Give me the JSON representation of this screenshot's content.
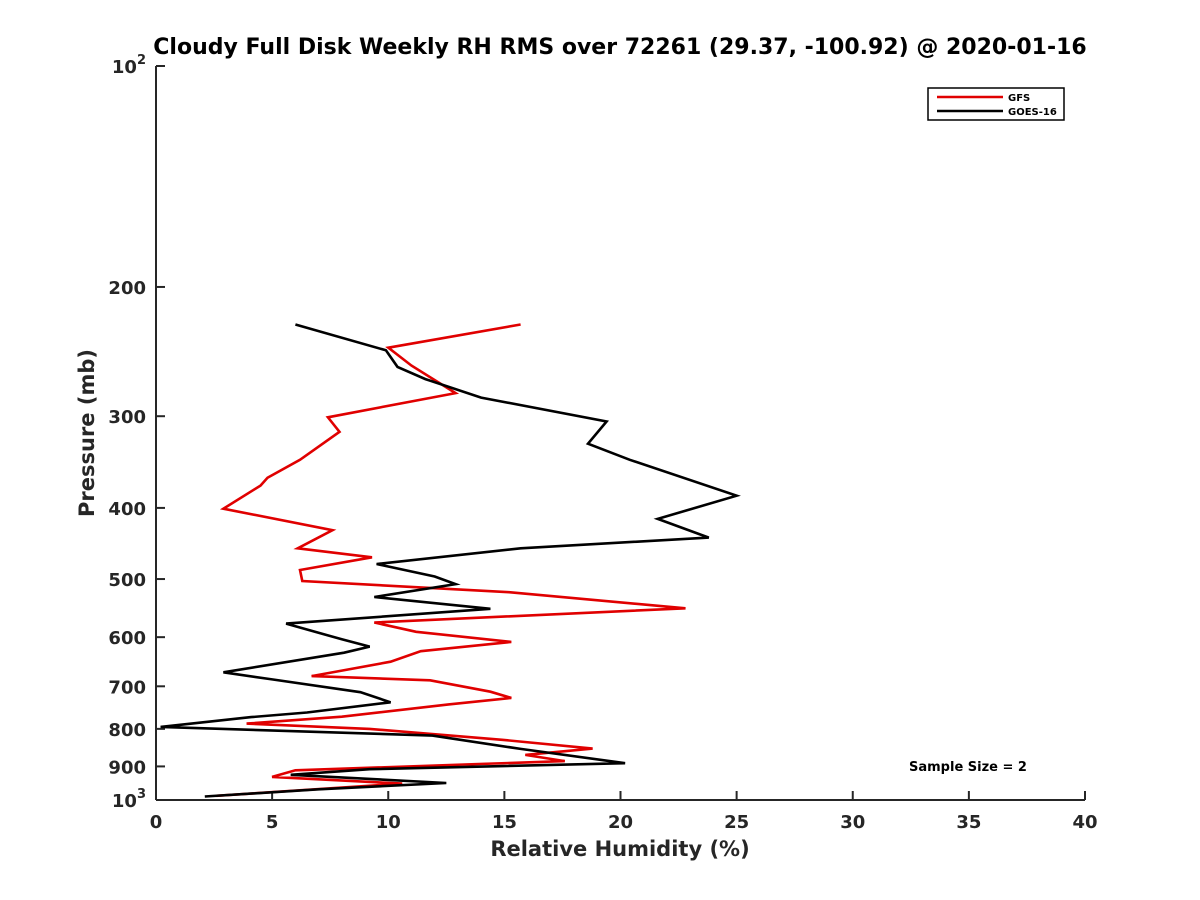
{
  "chart_data": {
    "type": "line",
    "title": "Cloudy Full Disk Weekly RH RMS over 72261 (29.37, -100.92) @ 2020-01-16",
    "xlabel": "Relative Humidity (%)",
    "ylabel": "Pressure (mb)",
    "xlim": [
      0,
      40
    ],
    "ylim": [
      1000,
      100
    ],
    "yscale": "log",
    "y_reversed": true,
    "grid": false,
    "legend_position": "top-right",
    "x_ticks": [
      {
        "value": 0,
        "label": "0"
      },
      {
        "value": 5,
        "label": "5"
      },
      {
        "value": 10,
        "label": "10"
      },
      {
        "value": 15,
        "label": "15"
      },
      {
        "value": 20,
        "label": "20"
      },
      {
        "value": 25,
        "label": "25"
      },
      {
        "value": 30,
        "label": "30"
      },
      {
        "value": 35,
        "label": "35"
      },
      {
        "value": 40,
        "label": "40"
      }
    ],
    "y_ticks": [
      {
        "value": 100,
        "base": "10",
        "exp": "2"
      },
      {
        "value": 200,
        "label": "200"
      },
      {
        "value": 300,
        "label": "300"
      },
      {
        "value": 400,
        "label": "400"
      },
      {
        "value": 500,
        "label": "500"
      },
      {
        "value": 600,
        "label": "600"
      },
      {
        "value": 700,
        "label": "700"
      },
      {
        "value": 800,
        "label": "800"
      },
      {
        "value": 900,
        "label": "900"
      },
      {
        "value": 1000,
        "base": "10",
        "exp": "3"
      }
    ],
    "annotation": "Sample Size = 2",
    "series": [
      {
        "name": "GFS",
        "color": "#e00000",
        "points": [
          [
            15.7,
            225
          ],
          [
            10.0,
            242
          ],
          [
            11.0,
            256
          ],
          [
            12.9,
            279
          ],
          [
            7.4,
            301
          ],
          [
            7.9,
            315
          ],
          [
            6.2,
            344
          ],
          [
            4.8,
            364
          ],
          [
            4.5,
            373
          ],
          [
            2.9,
            401
          ],
          [
            7.6,
            429
          ],
          [
            6.1,
            454
          ],
          [
            9.3,
            467
          ],
          [
            6.2,
            486
          ],
          [
            6.3,
            503
          ],
          [
            15.2,
            521
          ],
          [
            22.8,
            548
          ],
          [
            9.4,
            573
          ],
          [
            11.2,
            590
          ],
          [
            15.3,
            609
          ],
          [
            11.4,
            627
          ],
          [
            10.1,
            648
          ],
          [
            6.7,
            678
          ],
          [
            11.8,
            687
          ],
          [
            14.4,
            712
          ],
          [
            15.3,
            726
          ],
          [
            12.6,
            741
          ],
          [
            8.0,
            770
          ],
          [
            3.9,
            787
          ],
          [
            9.2,
            800
          ],
          [
            14.9,
            828
          ],
          [
            18.8,
            851
          ],
          [
            15.9,
            868
          ],
          [
            17.6,
            885
          ],
          [
            6.0,
            911
          ],
          [
            5.0,
            930
          ],
          [
            10.6,
            950
          ],
          [
            2.6,
            987
          ]
        ]
      },
      {
        "name": "GOES-16",
        "color": "#000000",
        "points": [
          [
            6.0,
            225
          ],
          [
            9.9,
            244
          ],
          [
            10.4,
            257
          ],
          [
            11.6,
            267
          ],
          [
            14.0,
            283
          ],
          [
            19.4,
            305
          ],
          [
            18.6,
            327
          ],
          [
            20.4,
            344
          ],
          [
            25.0,
            385
          ],
          [
            21.6,
            414
          ],
          [
            23.8,
            439
          ],
          [
            15.7,
            454
          ],
          [
            9.5,
            477
          ],
          [
            12.0,
            496
          ],
          [
            12.9,
            508
          ],
          [
            9.4,
            529
          ],
          [
            14.4,
            549
          ],
          [
            5.6,
            575
          ],
          [
            8.0,
            604
          ],
          [
            9.2,
            618
          ],
          [
            8.1,
            630
          ],
          [
            2.9,
            670
          ],
          [
            5.0,
            685
          ],
          [
            8.8,
            713
          ],
          [
            10.1,
            736
          ],
          [
            6.5,
            760
          ],
          [
            4.1,
            771
          ],
          [
            0.2,
            795
          ],
          [
            11.9,
            817
          ],
          [
            15.7,
            852
          ],
          [
            20.2,
            891
          ],
          [
            9.2,
            908
          ],
          [
            5.8,
            924
          ],
          [
            12.5,
            948
          ],
          [
            7.0,
            967
          ],
          [
            2.1,
            989
          ]
        ]
      }
    ]
  }
}
